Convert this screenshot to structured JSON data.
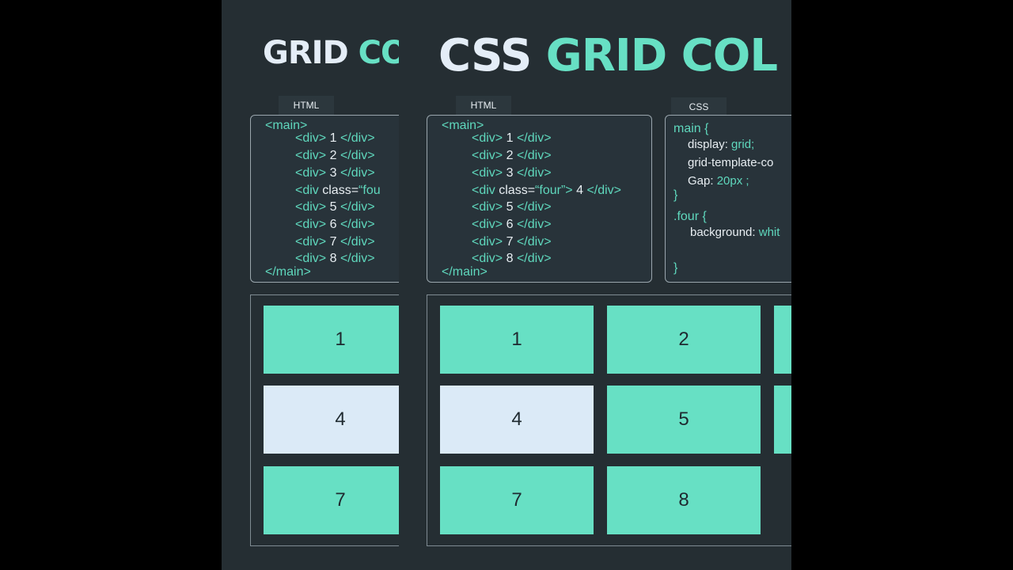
{
  "back_panel": {
    "title_part1": "GRID",
    "title_part2": "CO",
    "html_tab": "HTML",
    "html_code": {
      "main_open": "<main>",
      "lines": [
        "1",
        "2",
        "3",
        "4",
        "5",
        "6",
        "7",
        "8"
      ],
      "div_open": "<div>",
      "div_close": "</div>",
      "div_class_start": "<div",
      "class_attr": " class=",
      "class_value": "“fou",
      "main_close": "</main>"
    },
    "cells": [
      {
        "label": "1",
        "highlight": false
      },
      {
        "label": "4",
        "highlight": true
      },
      {
        "label": "7",
        "highlight": false
      }
    ]
  },
  "front_panel": {
    "title_part1": "CSS",
    "title_part2": "GRID COL",
    "html_tab": "HTML",
    "css_tab": "CSS",
    "html_code": {
      "main_open": "<main>",
      "div_open": "<div>",
      "div_close": "</div>",
      "div_class_start": "<div",
      "class_attr": " class=",
      "class_value": "“four”>",
      "four_label": "4",
      "main_close": "</main>",
      "numbers": [
        "1",
        "2",
        "3",
        "5",
        "6",
        "7",
        "8"
      ]
    },
    "css_code": {
      "main_selector": "main {",
      "display_prop": "display:",
      "display_val": "grid;",
      "gtc_prop": "grid-template-co",
      "gap_prop": "Gap:",
      "gap_val": "20px ;",
      "close_brace": "}",
      "four_selector": ".four {",
      "bg_prop": "background:",
      "bg_val": "whit"
    },
    "cells": [
      {
        "label": "1",
        "highlight": false
      },
      {
        "label": "2",
        "highlight": false
      },
      {
        "label": "",
        "highlight": false
      },
      {
        "label": "4",
        "highlight": true
      },
      {
        "label": "5",
        "highlight": false
      },
      {
        "label": "",
        "highlight": false
      },
      {
        "label": "7",
        "highlight": false
      },
      {
        "label": "8",
        "highlight": false
      }
    ]
  },
  "colors": {
    "background": "#252e33",
    "accent_green": "#67e0c4",
    "highlight_white": "#dbeaf7",
    "title_white": "#e4edf7"
  }
}
